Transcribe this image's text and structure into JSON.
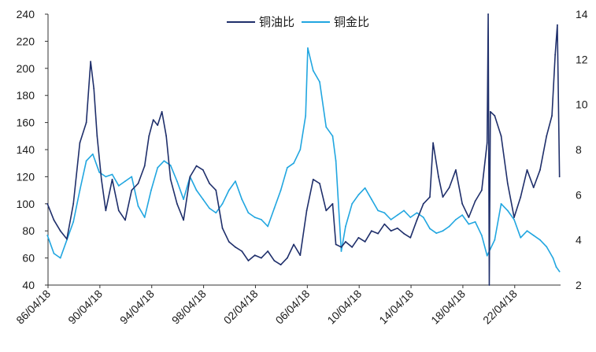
{
  "chart_data": {
    "type": "line",
    "title": "",
    "xlabel": "",
    "ylabel": "",
    "grid": false,
    "legend_placement": "top-center",
    "x_range": [
      "1986-04-18",
      "2025-10-31"
    ],
    "x_tick_labels": [
      "86/04/18",
      "90/04/18",
      "94/04/18",
      "98/04/18",
      "02/04/18",
      "06/04/18",
      "10/04/18",
      "14/04/18",
      "18/04/18",
      "22/04/18"
    ],
    "y_left": {
      "min": 40,
      "max": 240,
      "ticks": [
        40,
        60,
        80,
        100,
        120,
        140,
        160,
        180,
        200,
        220,
        240
      ]
    },
    "y_right": {
      "min": 2,
      "max": 14,
      "ticks": [
        2,
        4,
        6,
        8,
        10,
        12,
        14
      ]
    },
    "series": [
      {
        "name": "铜油比",
        "axis": "left",
        "color": "#1f2f6b",
        "points": [
          [
            "1986-04",
            100
          ],
          [
            "1986-10",
            88
          ],
          [
            "1987-04",
            80
          ],
          [
            "1987-10",
            74
          ],
          [
            "1988-04",
            100
          ],
          [
            "1988-10",
            145
          ],
          [
            "1989-04",
            160
          ],
          [
            "1989-08",
            205
          ],
          [
            "1989-11",
            185
          ],
          [
            "1990-02",
            150
          ],
          [
            "1990-06",
            118
          ],
          [
            "1990-10",
            95
          ],
          [
            "1991-04",
            118
          ],
          [
            "1991-10",
            95
          ],
          [
            "1992-04",
            88
          ],
          [
            "1992-10",
            110
          ],
          [
            "1993-04",
            115
          ],
          [
            "1993-10",
            128
          ],
          [
            "1994-02",
            150
          ],
          [
            "1994-06",
            162
          ],
          [
            "1994-10",
            158
          ],
          [
            "1995-02",
            168
          ],
          [
            "1995-06",
            150
          ],
          [
            "1995-10",
            118
          ],
          [
            "1996-04",
            100
          ],
          [
            "1996-10",
            88
          ],
          [
            "1997-04",
            120
          ],
          [
            "1997-10",
            128
          ],
          [
            "1998-04",
            125
          ],
          [
            "1998-10",
            115
          ],
          [
            "1999-04",
            110
          ],
          [
            "1999-10",
            82
          ],
          [
            "2000-04",
            72
          ],
          [
            "2000-10",
            68
          ],
          [
            "2001-04",
            65
          ],
          [
            "2001-10",
            58
          ],
          [
            "2002-04",
            62
          ],
          [
            "2002-10",
            60
          ],
          [
            "2003-04",
            65
          ],
          [
            "2003-10",
            58
          ],
          [
            "2004-04",
            55
          ],
          [
            "2004-10",
            60
          ],
          [
            "2005-04",
            70
          ],
          [
            "2005-10",
            62
          ],
          [
            "2006-04",
            95
          ],
          [
            "2006-10",
            118
          ],
          [
            "2007-04",
            115
          ],
          [
            "2007-10",
            95
          ],
          [
            "2008-04",
            100
          ],
          [
            "2008-07",
            70
          ],
          [
            "2008-12",
            68
          ],
          [
            "2009-04",
            72
          ],
          [
            "2009-10",
            68
          ],
          [
            "2010-04",
            75
          ],
          [
            "2010-10",
            72
          ],
          [
            "2011-04",
            80
          ],
          [
            "2011-10",
            78
          ],
          [
            "2012-04",
            85
          ],
          [
            "2012-10",
            80
          ],
          [
            "2013-04",
            82
          ],
          [
            "2013-10",
            78
          ],
          [
            "2014-04",
            75
          ],
          [
            "2014-10",
            88
          ],
          [
            "2015-04",
            100
          ],
          [
            "2015-10",
            105
          ],
          [
            "2016-01",
            145
          ],
          [
            "2016-06",
            120
          ],
          [
            "2016-10",
            105
          ],
          [
            "2017-04",
            112
          ],
          [
            "2017-10",
            125
          ],
          [
            "2018-04",
            100
          ],
          [
            "2018-10",
            90
          ],
          [
            "2019-04",
            102
          ],
          [
            "2019-10",
            110
          ],
          [
            "2020-03",
            145
          ],
          [
            "2020-04",
            240
          ],
          [
            "2020-05",
            40
          ],
          [
            "2020-06",
            168
          ],
          [
            "2020-10",
            165
          ],
          [
            "2021-04",
            150
          ],
          [
            "2021-10",
            115
          ],
          [
            "2022-04",
            90
          ],
          [
            "2022-10",
            105
          ],
          [
            "2023-04",
            125
          ],
          [
            "2023-10",
            112
          ],
          [
            "2024-04",
            125
          ],
          [
            "2024-10",
            150
          ],
          [
            "2025-03",
            165
          ],
          [
            "2025-06",
            210
          ],
          [
            "2025-08",
            232
          ],
          [
            "2025-10",
            120
          ]
        ]
      },
      {
        "name": "铜金比",
        "axis": "right",
        "color": "#21a6e0",
        "points": [
          [
            "1986-04",
            4.2
          ],
          [
            "1986-10",
            3.4
          ],
          [
            "1987-04",
            3.2
          ],
          [
            "1987-10",
            4.0
          ],
          [
            "1988-04",
            4.8
          ],
          [
            "1988-10",
            6.2
          ],
          [
            "1989-04",
            7.5
          ],
          [
            "1989-10",
            7.8
          ],
          [
            "1990-04",
            7.0
          ],
          [
            "1990-10",
            6.8
          ],
          [
            "1991-04",
            6.9
          ],
          [
            "1991-10",
            6.4
          ],
          [
            "1992-04",
            6.6
          ],
          [
            "1992-10",
            6.8
          ],
          [
            "1993-04",
            5.5
          ],
          [
            "1993-10",
            5.0
          ],
          [
            "1994-04",
            6.2
          ],
          [
            "1994-10",
            7.2
          ],
          [
            "1995-04",
            7.5
          ],
          [
            "1995-10",
            7.3
          ],
          [
            "1996-04",
            6.6
          ],
          [
            "1996-10",
            5.8
          ],
          [
            "1997-04",
            6.8
          ],
          [
            "1997-10",
            6.2
          ],
          [
            "1998-04",
            5.8
          ],
          [
            "1998-10",
            5.4
          ],
          [
            "1999-04",
            5.2
          ],
          [
            "1999-10",
            5.6
          ],
          [
            "2000-04",
            6.2
          ],
          [
            "2000-10",
            6.6
          ],
          [
            "2001-04",
            5.8
          ],
          [
            "2001-10",
            5.2
          ],
          [
            "2002-04",
            5.0
          ],
          [
            "2002-10",
            4.9
          ],
          [
            "2003-04",
            4.6
          ],
          [
            "2003-10",
            5.4
          ],
          [
            "2004-04",
            6.2
          ],
          [
            "2004-10",
            7.2
          ],
          [
            "2005-04",
            7.4
          ],
          [
            "2005-10",
            8.0
          ],
          [
            "2006-03",
            9.5
          ],
          [
            "2006-05",
            12.5
          ],
          [
            "2006-10",
            11.5
          ],
          [
            "2007-04",
            11.0
          ],
          [
            "2007-10",
            9.0
          ],
          [
            "2008-04",
            8.6
          ],
          [
            "2008-07",
            7.5
          ],
          [
            "2008-12",
            3.5
          ],
          [
            "2009-04",
            4.6
          ],
          [
            "2009-10",
            5.6
          ],
          [
            "2010-04",
            6.0
          ],
          [
            "2010-10",
            6.3
          ],
          [
            "2011-04",
            5.8
          ],
          [
            "2011-10",
            5.3
          ],
          [
            "2012-04",
            5.2
          ],
          [
            "2012-10",
            4.9
          ],
          [
            "2013-04",
            5.1
          ],
          [
            "2013-10",
            5.3
          ],
          [
            "2014-04",
            5.0
          ],
          [
            "2014-10",
            5.2
          ],
          [
            "2015-04",
            5.0
          ],
          [
            "2015-10",
            4.5
          ],
          [
            "2016-04",
            4.3
          ],
          [
            "2016-10",
            4.4
          ],
          [
            "2017-04",
            4.6
          ],
          [
            "2017-10",
            4.9
          ],
          [
            "2018-04",
            5.1
          ],
          [
            "2018-10",
            4.7
          ],
          [
            "2019-04",
            4.8
          ],
          [
            "2019-10",
            4.2
          ],
          [
            "2020-03",
            3.3
          ],
          [
            "2020-06",
            3.6
          ],
          [
            "2020-10",
            4.0
          ],
          [
            "2021-04",
            5.6
          ],
          [
            "2021-10",
            5.3
          ],
          [
            "2022-04",
            4.9
          ],
          [
            "2022-10",
            4.1
          ],
          [
            "2023-04",
            4.4
          ],
          [
            "2023-10",
            4.2
          ],
          [
            "2024-04",
            4.0
          ],
          [
            "2024-10",
            3.7
          ],
          [
            "2025-04",
            3.2
          ],
          [
            "2025-07",
            2.8
          ],
          [
            "2025-10",
            2.6
          ]
        ]
      }
    ]
  }
}
